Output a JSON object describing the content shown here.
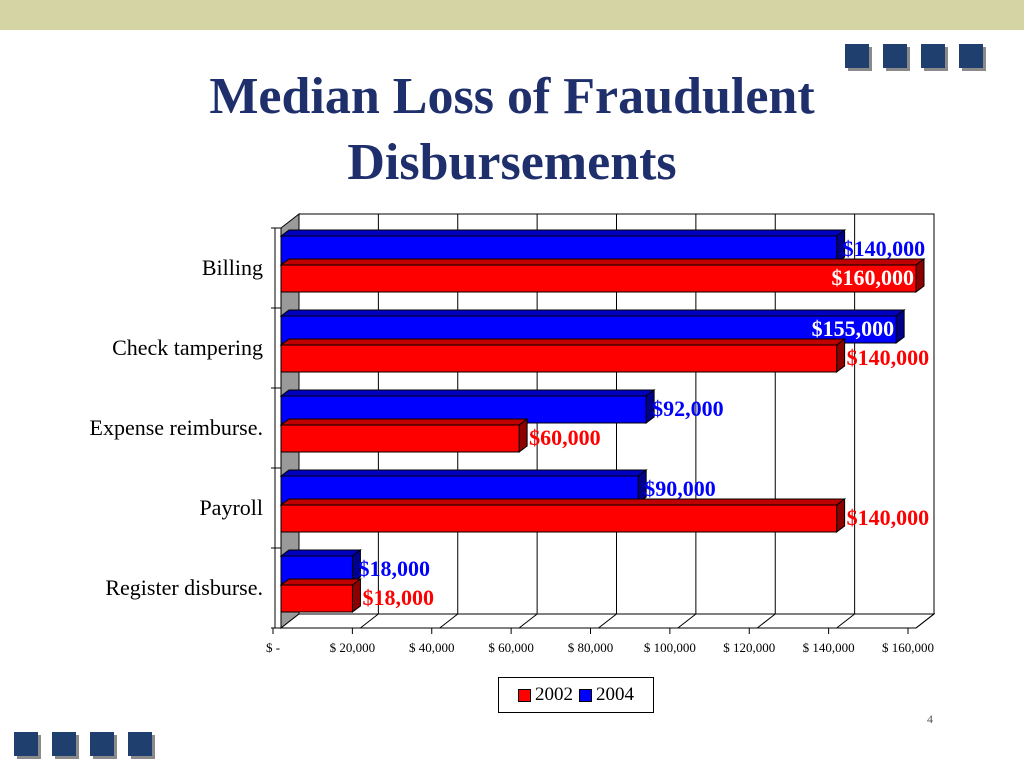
{
  "slide": {
    "title_line1": "Median Loss of Fraudulent",
    "title_line2": "Disbursements",
    "slide_mark": "4"
  },
  "colors": {
    "series_2002": "#ff0000",
    "series_2004": "#0000ff",
    "title": "#1e2f6c",
    "decor_square": "#1f3f6e",
    "top_band": "#d4d4a4"
  },
  "chart_data": {
    "type": "bar",
    "orientation": "horizontal",
    "title": "Median Loss of Fraudulent Disbursements",
    "categories": [
      "Billing",
      "Check tampering",
      "Expense reimburse.",
      "Payroll",
      "Register disburse."
    ],
    "series": [
      {
        "name": "2004",
        "values": [
          140000,
          155000,
          92000,
          90000,
          18000
        ],
        "labels": [
          "$140,000",
          "$155,000",
          "$92,000",
          "$90,000",
          "$18,000"
        ]
      },
      {
        "name": "2002",
        "values": [
          160000,
          140000,
          60000,
          140000,
          18000
        ],
        "labels": [
          "$160,000",
          "$140,000",
          "$60,000",
          "$140,000",
          "$18,000"
        ]
      }
    ],
    "x_ticks": [
      0,
      20000,
      40000,
      60000,
      80000,
      100000,
      120000,
      140000,
      160000
    ],
    "x_tick_labels": [
      "$ -",
      "$ 20,000",
      "$ 40,000",
      "$ 60,000",
      "$ 80,000",
      "$ 100,000",
      "$ 120,000",
      "$ 140,000",
      "$ 160,000"
    ],
    "xlim": [
      0,
      160000
    ],
    "xlabel": "",
    "ylabel": "",
    "grid": true,
    "legend_placement": "bottom-center",
    "legend": [
      "2002",
      "2004"
    ]
  }
}
